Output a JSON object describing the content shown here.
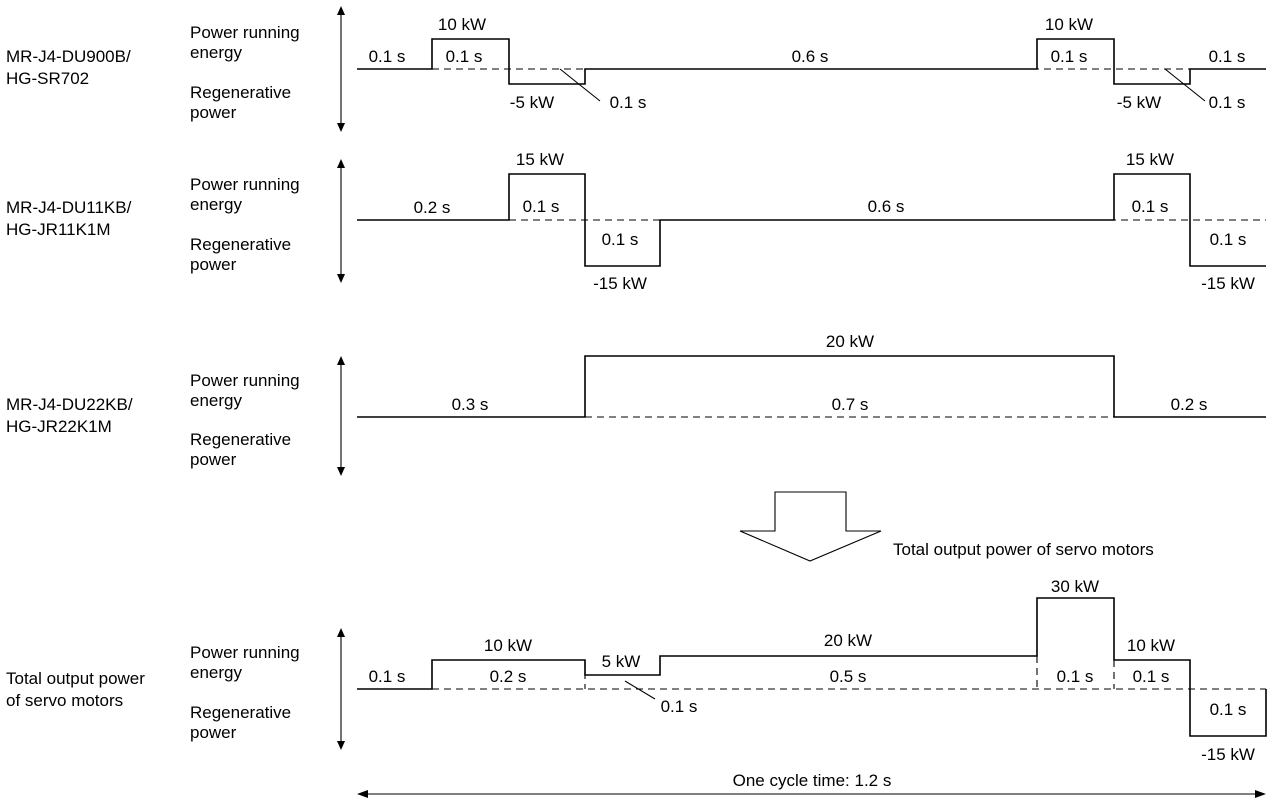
{
  "rows": [
    {
      "unit": [
        "MR-J4-DU900B/",
        "HG-SR702"
      ],
      "axis_top": [
        "Power running",
        "energy"
      ],
      "axis_bottom": [
        "Regenerative",
        "power"
      ],
      "segments": [
        {
          "duration_s": 0.1,
          "power_kw": 0
        },
        {
          "duration_s": 0.1,
          "power_kw": 10
        },
        {
          "duration_s": 0.1,
          "power_kw": -5
        },
        {
          "duration_s": 0.6,
          "power_kw": 0
        },
        {
          "duration_s": 0.1,
          "power_kw": 10
        },
        {
          "duration_s": 0.1,
          "power_kw": -5
        },
        {
          "duration_s": 0.1,
          "power_kw": 0
        }
      ],
      "labels": {
        "d1": "0.1 s",
        "p1": "10 kW",
        "d2": "0.1 s",
        "p2": "-5 kW",
        "d3": "0.1 s",
        "d4": "0.6 s",
        "p3": "10 kW",
        "d5": "0.1 s",
        "p4": "-5 kW",
        "d6": "0.1 s",
        "d7": "0.1 s"
      }
    },
    {
      "unit": [
        "MR-J4-DU11KB/",
        "HG-JR11K1M"
      ],
      "axis_top": [
        "Power running",
        "energy"
      ],
      "axis_bottom": [
        "Regenerative",
        "power"
      ],
      "segments": [
        {
          "duration_s": 0.2,
          "power_kw": 0
        },
        {
          "duration_s": 0.1,
          "power_kw": 15
        },
        {
          "duration_s": 0.1,
          "power_kw": -15
        },
        {
          "duration_s": 0.6,
          "power_kw": 0
        },
        {
          "duration_s": 0.1,
          "power_kw": 15
        },
        {
          "duration_s": 0.1,
          "power_kw": -15
        }
      ],
      "labels": {
        "d1": "0.2 s",
        "p1": "15 kW",
        "d2": "0.1 s",
        "d3": "0.1 s",
        "p2": "-15 kW",
        "d4": "0.6 s",
        "p3": "15 kW",
        "d5": "0.1 s",
        "d6": "0.1 s",
        "p4": "-15 kW"
      }
    },
    {
      "unit": [
        "MR-J4-DU22KB/",
        "HG-JR22K1M"
      ],
      "axis_top": [
        "Power running",
        "energy"
      ],
      "axis_bottom": [
        "Regenerative",
        "power"
      ],
      "segments": [
        {
          "duration_s": 0.3,
          "power_kw": 0
        },
        {
          "duration_s": 0.7,
          "power_kw": 20
        },
        {
          "duration_s": 0.2,
          "power_kw": 0
        }
      ],
      "labels": {
        "d1": "0.3 s",
        "p1": "20 kW",
        "d2": "0.7 s",
        "d3": "0.2 s"
      }
    }
  ],
  "total_arrow_label": "Total output power of servo motors",
  "total": {
    "unit": [
      "Total output power",
      "of servo motors"
    ],
    "axis_top": [
      "Power running",
      "energy"
    ],
    "axis_bottom": [
      "Regenerative",
      "power"
    ],
    "segments": [
      {
        "duration_s": 0.1,
        "power_kw": 0
      },
      {
        "duration_s": 0.2,
        "power_kw": 10
      },
      {
        "duration_s": 0.1,
        "power_kw": 5
      },
      {
        "duration_s": 0.5,
        "power_kw": 20
      },
      {
        "duration_s": 0.1,
        "power_kw": 30
      },
      {
        "duration_s": 0.1,
        "power_kw": 10
      },
      {
        "duration_s": 0.1,
        "power_kw": -15
      }
    ],
    "labels": {
      "d1": "0.1 s",
      "p1": "10 kW",
      "d2": "0.2 s",
      "p2": "5 kW",
      "d3": "0.1 s",
      "p3": "20 kW",
      "d4": "0.5 s",
      "p4": "30 kW",
      "d5": "0.1 s",
      "p5": "10 kW",
      "d6": "0.1 s",
      "d7": "0.1 s",
      "p6": "-15 kW"
    }
  },
  "cycle_label": "One cycle time: 1.2 s"
}
